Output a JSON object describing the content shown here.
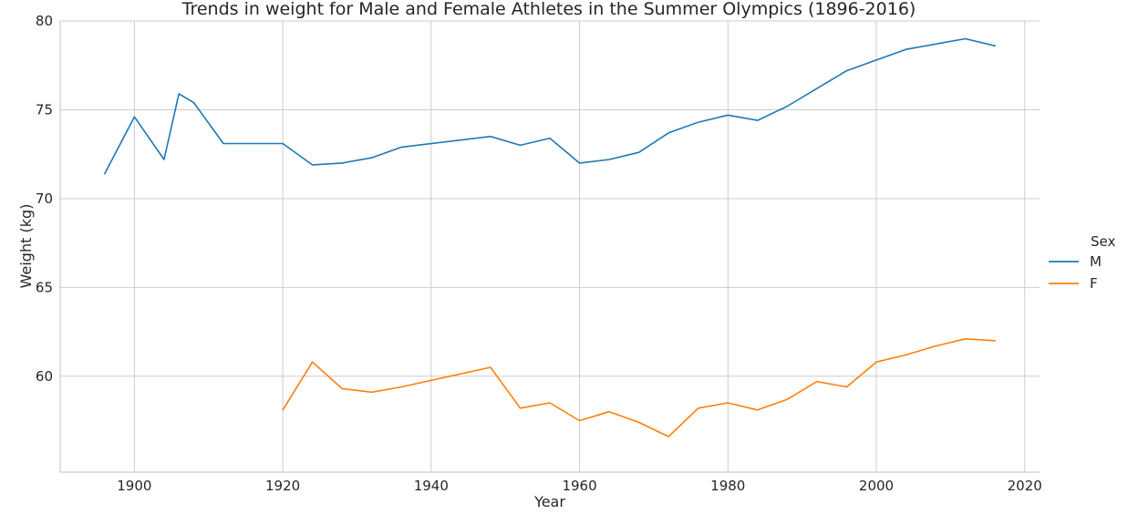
{
  "chart_data": {
    "type": "line",
    "title": "Trends in weight for Male and Female Athletes in the Summer Olympics (1896-2016)",
    "xlabel": "Year",
    "ylabel": "Weight (kg)",
    "xlim": [
      1890,
      2022
    ],
    "ylim": [
      54.6,
      80
    ],
    "xticks": [
      1900,
      1920,
      1940,
      1960,
      1980,
      2000,
      2020
    ],
    "yticks": [
      60,
      65,
      70,
      75,
      80
    ],
    "grid": true,
    "legend": {
      "title": "Sex",
      "placement": "right"
    },
    "series": [
      {
        "name": "M",
        "color": "#1f77b4",
        "points": [
          [
            1896,
            71.4
          ],
          [
            1900,
            74.6
          ],
          [
            1904,
            72.2
          ],
          [
            1906,
            75.9
          ],
          [
            1908,
            75.4
          ],
          [
            1912,
            73.1
          ],
          [
            1920,
            73.1
          ],
          [
            1924,
            71.9
          ],
          [
            1928,
            72.0
          ],
          [
            1932,
            72.3
          ],
          [
            1936,
            72.9
          ],
          [
            1948,
            73.5
          ],
          [
            1952,
            73.0
          ],
          [
            1956,
            73.4
          ],
          [
            1960,
            72.0
          ],
          [
            1964,
            72.2
          ],
          [
            1968,
            72.6
          ],
          [
            1972,
            73.7
          ],
          [
            1976,
            74.3
          ],
          [
            1980,
            74.7
          ],
          [
            1984,
            74.4
          ],
          [
            1988,
            75.2
          ],
          [
            1992,
            76.2
          ],
          [
            1996,
            77.2
          ],
          [
            2000,
            77.8
          ],
          [
            2004,
            78.4
          ],
          [
            2008,
            78.7
          ],
          [
            2012,
            79.0
          ],
          [
            2016,
            78.6
          ]
        ]
      },
      {
        "name": "F",
        "color": "#ff7f0e",
        "points": [
          [
            1920,
            58.1
          ],
          [
            1924,
            60.8
          ],
          [
            1928,
            59.3
          ],
          [
            1932,
            59.1
          ],
          [
            1936,
            59.4
          ],
          [
            1948,
            60.5
          ],
          [
            1952,
            58.2
          ],
          [
            1956,
            58.5
          ],
          [
            1960,
            57.5
          ],
          [
            1964,
            58.0
          ],
          [
            1968,
            57.4
          ],
          [
            1972,
            56.6
          ],
          [
            1976,
            58.2
          ],
          [
            1980,
            58.5
          ],
          [
            1984,
            58.1
          ],
          [
            1988,
            58.7
          ],
          [
            1992,
            59.7
          ],
          [
            1996,
            59.4
          ],
          [
            2000,
            60.8
          ],
          [
            2004,
            61.2
          ],
          [
            2008,
            61.7
          ],
          [
            2012,
            62.1
          ],
          [
            2016,
            62.0
          ]
        ]
      }
    ]
  }
}
